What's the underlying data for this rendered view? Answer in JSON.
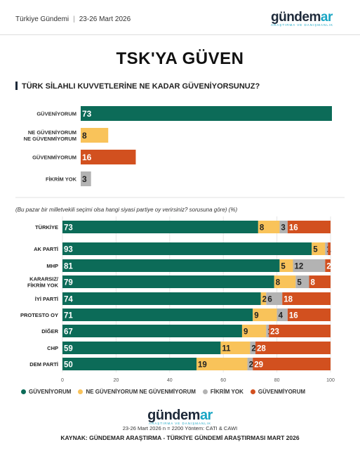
{
  "header": {
    "brand_text": "Türkiye Gündemi",
    "date": "23-26 Mart 2026",
    "logo": {
      "word_main": "gündem",
      "word_accent": "ar",
      "sub": "ARAŞTIRMA VE DANIŞMANLIK"
    }
  },
  "title": "TSK'YA GÜVEN",
  "question": "TÜRK SİLAHLI KUVVETLERİNE NE KADAR GÜVENİYORSUNUZ?",
  "subtitle": "(Bu pazar bir milletvekili seçimi olsa hangi siyasi partiye oy verirsiniz? sorusuna göre) (%)",
  "colors": {
    "trust": "#0c6b58",
    "neither": "#f9c35a",
    "no_opinion": "#b3b3b3",
    "distrust": "#d2501f"
  },
  "chart_data": [
    {
      "type": "bar",
      "orientation": "horizontal",
      "categories": [
        [
          "GÜVENİYORUM"
        ],
        [
          "NE GÜVENİYORUM",
          "NE GÜVENMİYORUM"
        ],
        [
          "GÜVENMİYORUM"
        ],
        [
          "FİKRİM YOK"
        ]
      ],
      "values": [
        73,
        8,
        16,
        3
      ],
      "value_labels": [
        "73",
        "8",
        "16",
        "3"
      ],
      "bar_colors": [
        "#0c6b58",
        "#f9c35a",
        "#d2501f",
        "#b3b3b3"
      ],
      "xlim": [
        0,
        73
      ]
    },
    {
      "type": "bar",
      "orientation": "horizontal",
      "stacked": true,
      "categories": [
        [
          "TÜRKİYE"
        ],
        [
          "AK PARTİ"
        ],
        [
          "MHP"
        ],
        [
          "KARARSIZ/",
          "FİKRİM YOK"
        ],
        [
          "İYİ PARTİ"
        ],
        [
          "PROTESTO OY"
        ],
        [
          "DİĞER"
        ],
        [
          "CHP"
        ],
        [
          "DEM PARTİ"
        ]
      ],
      "series": [
        {
          "name": "GÜVENİYORUM",
          "color": "#0c6b58",
          "values": [
            73,
            93,
            81,
            79,
            74,
            71,
            67,
            59,
            50
          ],
          "labels": [
            "73",
            "93",
            "81",
            "79",
            "74",
            "71",
            "67",
            "59",
            "50"
          ]
        },
        {
          "name": "NE GÜVENİYORUM NE GÜVENMİYORUM",
          "color": "#f9c35a",
          "values": [
            8,
            5,
            5,
            8,
            2,
            9,
            9,
            11,
            19
          ],
          "labels": [
            "8",
            "5",
            "5",
            "8",
            "2",
            "9",
            "9",
            "11",
            "19"
          ]
        },
        {
          "name": "FİKRİM YOK",
          "color": "#b3b3b3",
          "values": [
            3,
            1,
            12,
            5,
            6,
            4,
            1,
            2,
            2
          ],
          "labels": [
            "3",
            "1",
            "12",
            "5",
            "6",
            "4",
            "1",
            "2",
            "2"
          ]
        },
        {
          "name": "GÜVENMİYORUM",
          "color": "#d2501f",
          "values": [
            16,
            1,
            2,
            8,
            18,
            16,
            23,
            28,
            29
          ],
          "labels": [
            "16",
            "",
            "2",
            "8",
            "18",
            "16",
            "23",
            "28",
            "29"
          ]
        }
      ],
      "xlim": [
        0,
        100
      ],
      "xticks": [
        "0",
        "20",
        "40",
        "60",
        "80",
        "100"
      ],
      "legend": "bottom",
      "grid": true
    }
  ],
  "footer": {
    "meta": "23-26 Mart 2026 n = 2200 Yöntem: CATI & CAWI",
    "source": "KAYNAK: GÜNDEMAR ARAŞTIRMA - TÜRKİYE GÜNDEMİ ARAŞTIRMASI MART 2026"
  }
}
